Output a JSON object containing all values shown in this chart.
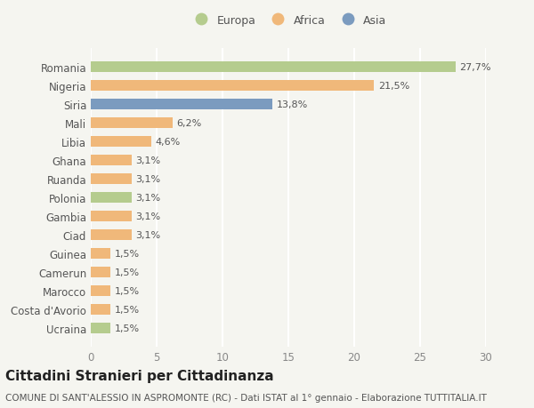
{
  "countries": [
    "Romania",
    "Nigeria",
    "Siria",
    "Mali",
    "Libia",
    "Ghana",
    "Ruanda",
    "Polonia",
    "Gambia",
    "Ciad",
    "Guinea",
    "Camerun",
    "Marocco",
    "Costa d'Avorio",
    "Ucraina"
  ],
  "values": [
    27.7,
    21.5,
    13.8,
    6.2,
    4.6,
    3.1,
    3.1,
    3.1,
    3.1,
    3.1,
    1.5,
    1.5,
    1.5,
    1.5,
    1.5
  ],
  "labels": [
    "27,7%",
    "21,5%",
    "13,8%",
    "6,2%",
    "4,6%",
    "3,1%",
    "3,1%",
    "3,1%",
    "3,1%",
    "3,1%",
    "1,5%",
    "1,5%",
    "1,5%",
    "1,5%",
    "1,5%"
  ],
  "categories": [
    "Europa",
    "Africa",
    "Asia"
  ],
  "bar_colors": [
    "#b5cc8e",
    "#f0b87a",
    "#7b9bbf",
    "#f0b87a",
    "#f0b87a",
    "#f0b87a",
    "#f0b87a",
    "#b5cc8e",
    "#f0b87a",
    "#f0b87a",
    "#f0b87a",
    "#f0b87a",
    "#f0b87a",
    "#f0b87a",
    "#b5cc8e"
  ],
  "legend_colors": [
    "#b5cc8e",
    "#f0b87a",
    "#7b9bbf"
  ],
  "xlim": [
    0,
    30
  ],
  "xticks": [
    0,
    5,
    10,
    15,
    20,
    25,
    30
  ],
  "title": "Cittadini Stranieri per Cittadinanza",
  "subtitle": "COMUNE DI SANT'ALESSIO IN ASPROMONTE (RC) - Dati ISTAT al 1° gennaio - Elaborazione TUTTITALIA.IT",
  "background_color": "#f5f5f0",
  "grid_color": "#ffffff",
  "bar_height": 0.55,
  "title_fontsize": 11,
  "subtitle_fontsize": 7.5,
  "label_fontsize": 8,
  "tick_fontsize": 8.5
}
